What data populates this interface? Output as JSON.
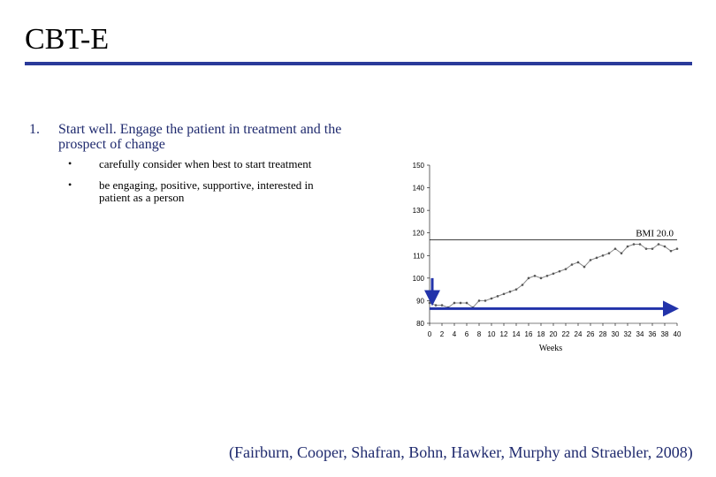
{
  "slide": {
    "title": "CBT-E",
    "point_number": "1.",
    "point_text": "Start well.  Engage the patient in treatment and the prospect of change",
    "bullets": [
      {
        "marker": "•",
        "text": "carefully consider when best to start treatment"
      },
      {
        "marker": "•",
        "text": "be engaging, positive, supportive, interested in patient as a person"
      }
    ],
    "citation": "(Fairburn, Cooper, Shafran, Bohn, Hawker, Murphy and Straebler, 2008)",
    "colors": {
      "title_rule": "#2a3a9a",
      "text": "#1f2a6e",
      "arrow": "#2233aa",
      "line": "#888888"
    }
  },
  "chart_data": {
    "type": "line",
    "xlabel": "Weeks",
    "ylabel": "",
    "xlim": [
      0,
      40
    ],
    "ylim": [
      80,
      150
    ],
    "x_ticks": [
      "0",
      "2",
      "4",
      "6",
      "8",
      "10",
      "12",
      "14",
      "16",
      "18",
      "20",
      "22",
      "24",
      "26",
      "28",
      "30",
      "32",
      "34",
      "36",
      "38",
      "40"
    ],
    "y_ticks": [
      "80",
      "90",
      "100",
      "110",
      "120",
      "130",
      "140",
      "150"
    ],
    "reference_line": {
      "y": 117,
      "label": "BMI 20.0"
    },
    "series": [
      {
        "name": "",
        "x": [
          0,
          1,
          2,
          3,
          4,
          5,
          6,
          7,
          8,
          9,
          10,
          11,
          12,
          13,
          14,
          15,
          16,
          17,
          18,
          19,
          20,
          21,
          22,
          23,
          24,
          25,
          26,
          27,
          28,
          29,
          30,
          31,
          32,
          33,
          34,
          35,
          36,
          37,
          38,
          39,
          40
        ],
        "values": [
          89,
          88,
          88,
          87,
          89,
          89,
          89,
          87,
          90,
          90,
          91,
          92,
          93,
          94,
          95,
          97,
          100,
          101,
          100,
          101,
          102,
          103,
          104,
          106,
          107,
          105,
          108,
          109,
          110,
          111,
          113,
          111,
          114,
          115,
          115,
          113,
          113,
          115,
          114,
          112,
          113
        ]
      }
    ],
    "arrows": [
      {
        "direction": "down",
        "x": 0,
        "y_from": 100,
        "y_to": 90
      },
      {
        "direction": "right",
        "y": 86.5,
        "x_from": 0,
        "x_to": 40
      }
    ]
  }
}
